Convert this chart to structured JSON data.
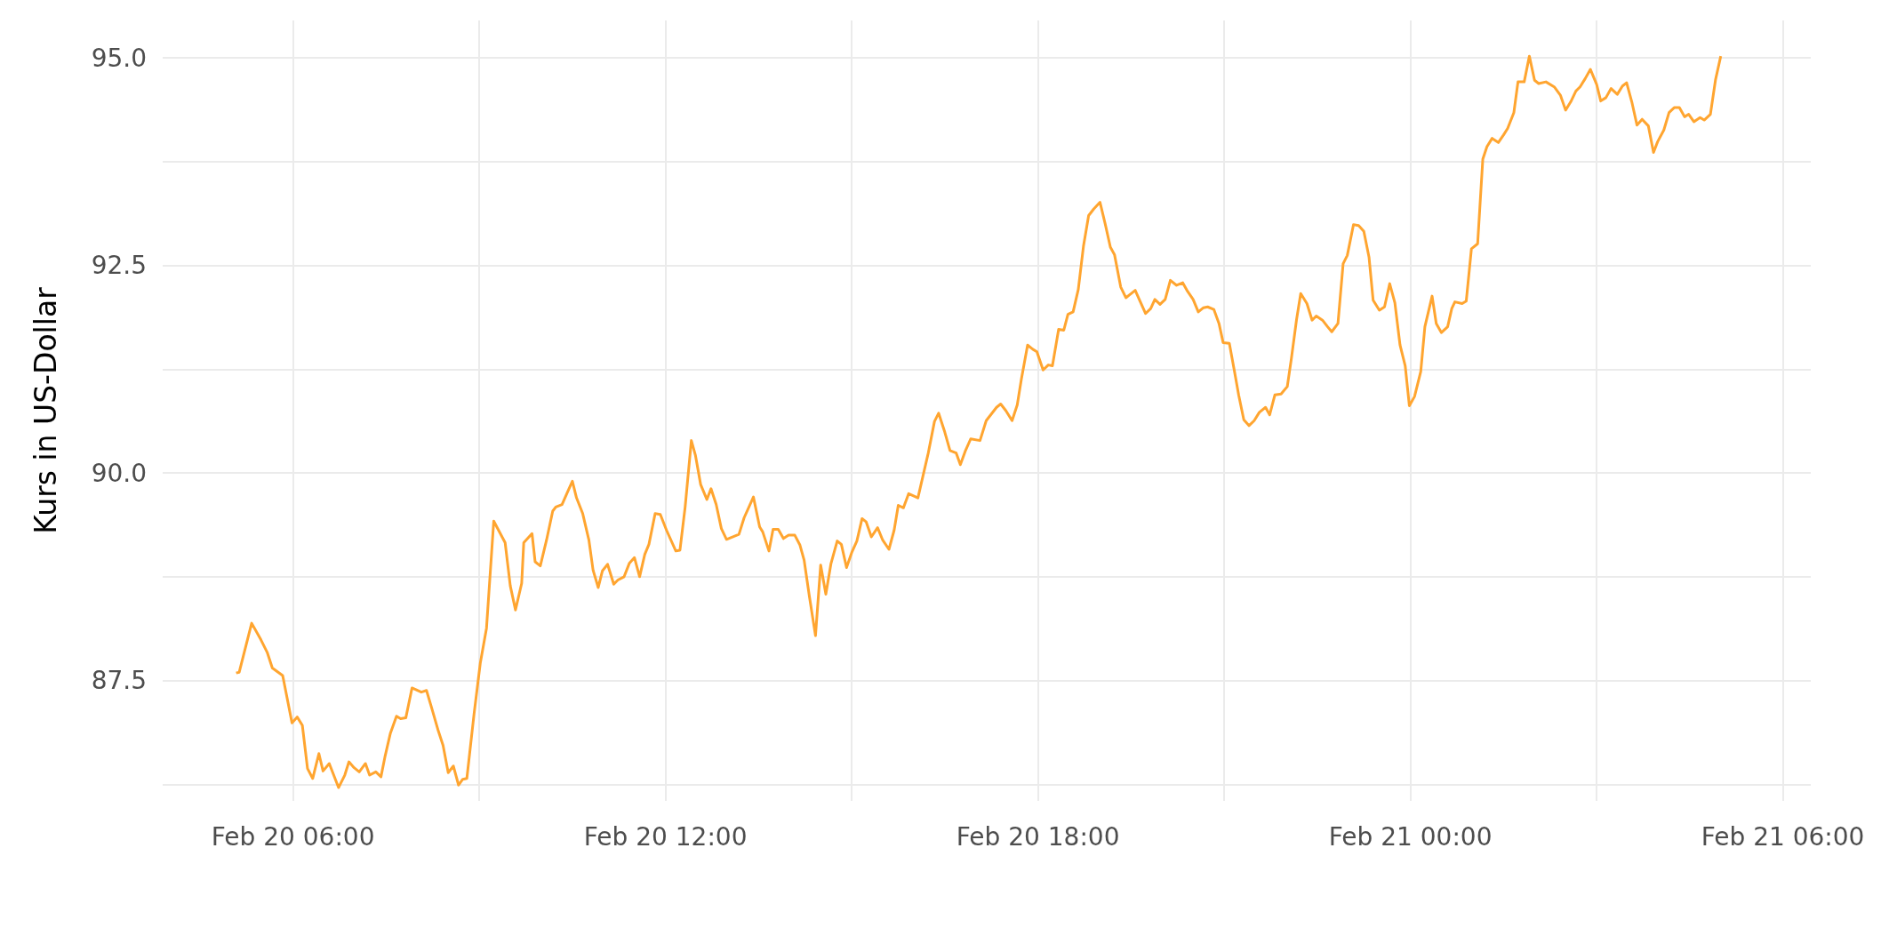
{
  "chart_data": {
    "type": "line",
    "ylabel": "Kurs in US-Dollar",
    "grid": true,
    "xlim": [
      "--02-20T03:54",
      "--02-21T06:27"
    ],
    "ylim": [
      86.05,
      95.45
    ],
    "xticks": [
      {
        "value": "--02-20T06:00",
        "label": "Feb 20 06:00"
      },
      {
        "value": "--02-20T09:00",
        "label": null
      },
      {
        "value": "--02-20T12:00",
        "label": "Feb 20 12:00"
      },
      {
        "value": "--02-20T15:00",
        "label": null
      },
      {
        "value": "--02-20T18:00",
        "label": "Feb 20 18:00"
      },
      {
        "value": "--02-20T21:00",
        "label": null
      },
      {
        "value": "--02-21T00:00",
        "label": "Feb 21 00:00"
      },
      {
        "value": "--02-21T03:00",
        "label": null
      },
      {
        "value": "--02-21T06:00",
        "label": "Feb 21 06:00"
      }
    ],
    "yticks": [
      {
        "value": 86.25,
        "label": null
      },
      87.5,
      {
        "value": 88.75,
        "label": null
      },
      {
        "value": 90,
        "label": "90.0"
      },
      {
        "value": 91.25,
        "label": null
      },
      92.5,
      {
        "value": 93.75,
        "label": null
      },
      {
        "value": 95,
        "label": "95.0"
      }
    ],
    "x": [
      "--02-20T05:05",
      "--02-20T05:08",
      "--02-20T05:20",
      "--02-20T05:29",
      "--02-20T05:35",
      "--02-20T05:40",
      "--02-20T05:50",
      "--02-20T05:59",
      "--02-20T06:04",
      "--02-20T06:09",
      "--02-20T06:14",
      "--02-20T06:19",
      "--02-20T06:25",
      "--02-20T06:29",
      "--02-20T06:35",
      "--02-20T06:44",
      "--02-20T06:50",
      "--02-20T06:54",
      "--02-20T06:59",
      "--02-20T07:04",
      "--02-20T07:10",
      "--02-20T07:14",
      "--02-20T07:20",
      "--02-20T07:25",
      "--02-20T07:29",
      "--02-20T07:34",
      "--02-20T07:40",
      "--02-20T07:44",
      "--02-20T07:49",
      "--02-20T07:55",
      "--02-20T08:04",
      "--02-20T08:09",
      "--02-20T08:14",
      "--02-20T08:20",
      "--02-20T08:25",
      "--02-20T08:30",
      "--02-20T08:35",
      "--02-20T08:40",
      "--02-20T08:44",
      "--02-20T08:48",
      "--02-20T08:55",
      "--02-20T09:01",
      "--02-20T09:07",
      "--02-20T09:14",
      "--02-20T09:25",
      "--02-20T09:30",
      "--02-20T09:35",
      "--02-20T09:41",
      "--02-20T09:43",
      "--02-20T09:51",
      "--02-20T09:54",
      "--02-20T09:59",
      "--02-20T10:05",
      "--02-20T10:11",
      "--02-20T10:14",
      "--02-20T10:20",
      "--02-20T10:25",
      "--02-20T10:30",
      "--02-20T10:34",
      "--02-20T10:40",
      "--02-20T10:46",
      "--02-20T10:50",
      "--02-20T10:55",
      "--02-20T10:59",
      "--02-20T11:04",
      "--02-20T11:10",
      "--02-20T11:14",
      "--02-20T11:20",
      "--02-20T11:25",
      "--02-20T11:30",
      "--02-20T11:35",
      "--02-20T11:40",
      "--02-20T11:44",
      "--02-20T11:50",
      "--02-20T11:55",
      "--02-20T12:01",
      "--02-20T12:10",
      "--02-20T12:14",
      "--02-20T12:19",
      "--02-20T12:25",
      "--02-20T12:29",
      "--02-20T12:34",
      "--02-20T12:40",
      "--02-20T12:44",
      "--02-20T12:49",
      "--02-20T12:54",
      "--02-20T12:59",
      "--02-20T13:11",
      "--02-20T13:16",
      "--02-20T13:25",
      "--02-20T13:31",
      "--02-20T13:34",
      "--02-20T13:40",
      "--02-20T13:44",
      "--02-20T13:49",
      "--02-20T13:54",
      "--02-20T13:59",
      "--02-20T14:05",
      "--02-20T14:10",
      "--02-20T14:14",
      "--02-20T14:19",
      "--02-20T14:25",
      "--02-20T14:30",
      "--02-20T14:35",
      "--02-20T14:40",
      "--02-20T14:46",
      "--02-20T14:50",
      "--02-20T14:55",
      "--02-20T15:00",
      "--02-20T15:05",
      "--02-20T15:10",
      "--02-20T15:14",
      "--02-20T15:19",
      "--02-20T15:25",
      "--02-20T15:30",
      "--02-20T15:36",
      "--02-20T15:41",
      "--02-20T15:45",
      "--02-20T15:50",
      "--02-20T15:55",
      "--02-20T16:04",
      "--02-20T16:09",
      "--02-20T16:14",
      "--02-20T16:20",
      "--02-20T16:24",
      "--02-20T16:30",
      "--02-20T16:35",
      "--02-20T16:41",
      "--02-20T16:45",
      "--02-20T16:50",
      "--02-20T16:55",
      "--02-20T17:04",
      "--02-20T17:10",
      "--02-20T17:15",
      "--02-20T17:20",
      "--02-20T17:24",
      "--02-20T17:29",
      "--02-20T17:35",
      "--02-20T17:40",
      "--02-20T17:44",
      "--02-20T17:50",
      "--02-20T17:55",
      "--02-20T17:59",
      "--02-20T18:05",
      "--02-20T18:10",
      "--02-20T18:14",
      "--02-20T18:20",
      "--02-20T18:25",
      "--02-20T18:29",
      "--02-20T18:34",
      "--02-20T18:39",
      "--02-20T18:44",
      "--02-20T18:49",
      "--02-20T18:54",
      "--02-20T19:00",
      "--02-20T19:05",
      "--02-20T19:10",
      "--02-20T19:14",
      "--02-20T19:20",
      "--02-20T19:25",
      "--02-20T19:30",
      "--02-20T19:34",
      "--02-20T19:39",
      "--02-20T19:44",
      "--02-20T19:49",
      "--02-20T19:53",
      "--02-20T19:58",
      "--02-20T20:03",
      "--02-20T20:08",
      "--02-20T20:14",
      "--02-20T20:20",
      "--02-20T20:24",
      "--02-20T20:30",
      "--02-20T20:35",
      "--02-20T20:40",
      "--02-20T20:44",
      "--02-20T20:50",
      "--02-20T20:55",
      "--02-20T20:59",
      "--02-20T21:05",
      "--02-20T21:10",
      "--02-20T21:14",
      "--02-20T21:19",
      "--02-20T21:24",
      "--02-20T21:29",
      "--02-20T21:34",
      "--02-20T21:40",
      "--02-20T21:44",
      "--02-20T21:49",
      "--02-20T21:55",
      "--02-20T22:01",
      "--02-20T22:05",
      "--02-20T22:10",
      "--02-20T22:14",
      "--02-20T22:20",
      "--02-20T22:25",
      "--02-20T22:29",
      "--02-20T22:35",
      "--02-20T22:40",
      "--02-20T22:44",
      "--02-20T22:50",
      "--02-20T22:55",
      "--02-20T22:59",
      "--02-20T23:05",
      "--02-20T23:10",
      "--02-20T23:15",
      "--02-20T23:20",
      "--02-20T23:24",
      "--02-20T23:30",
      "--02-20T23:35",
      "--02-20T23:40",
      "--02-20T23:45",
      "--02-20T23:50",
      "--02-20T23:55",
      "--02-20T23:59",
      "--02-21T00:04",
      "--02-21T00:10",
      "--02-21T00:14",
      "--02-21T00:21",
      "--02-21T00:25",
      "--02-21T00:30",
      "--02-21T00:36",
      "--02-21T00:40",
      "--02-21T00:43",
      "--02-21T00:50",
      "--02-21T00:54",
      "--02-21T00:59",
      "--02-21T01:05",
      "--02-21T01:10",
      "--02-21T01:14",
      "--02-21T01:19",
      "--02-21T01:25",
      "--02-21T01:30",
      "--02-21T01:34",
      "--02-21T01:40",
      "--02-21T01:44",
      "--02-21T01:50",
      "--02-21T01:55",
      "--02-21T02:00",
      "--02-21T02:04",
      "--02-21T02:11",
      "--02-21T02:19",
      "--02-21T02:25",
      "--02-21T02:30",
      "--02-21T02:35",
      "--02-21T02:40",
      "--02-21T02:44",
      "--02-21T02:49",
      "--02-21T02:54",
      "--02-21T03:00",
      "--02-21T03:04",
      "--02-21T03:09",
      "--02-21T03:14",
      "--02-21T03:20",
      "--02-21T03:25",
      "--02-21T03:29",
      "--02-21T03:34",
      "--02-21T03:39",
      "--02-21T03:44",
      "--02-21T03:50",
      "--02-21T03:55",
      "--02-21T03:59",
      "--02-21T04:05",
      "--02-21T04:10",
      "--02-21T04:15",
      "--02-21T04:20",
      "--02-21T04:25",
      "--02-21T04:29",
      "--02-21T04:34",
      "--02-21T04:40",
      "--02-21T04:44",
      "--02-21T04:50",
      "--02-21T04:55",
      "--02-21T05:00"
    ],
    "series": [
      {
        "color": "#ffa530",
        "values": [
          87.59,
          87.6,
          88.19,
          87.99,
          87.84,
          87.65,
          87.56,
          86.99,
          87.06,
          86.96,
          86.44,
          86.32,
          86.62,
          86.41,
          86.5,
          86.21,
          86.36,
          86.52,
          86.45,
          86.4,
          86.5,
          86.36,
          86.4,
          86.34,
          86.59,
          86.86,
          87.07,
          87.04,
          87.05,
          87.41,
          87.36,
          87.38,
          87.17,
          86.91,
          86.72,
          86.39,
          86.47,
          86.24,
          86.31,
          86.32,
          87.1,
          87.71,
          88.13,
          89.42,
          89.16,
          88.64,
          88.35,
          88.67,
          89.16,
          89.27,
          88.93,
          88.88,
          89.19,
          89.54,
          89.59,
          89.62,
          89.76,
          89.9,
          89.7,
          89.51,
          89.19,
          88.83,
          88.62,
          88.82,
          88.9,
          88.66,
          88.71,
          88.75,
          88.91,
          88.98,
          88.75,
          89.02,
          89.14,
          89.51,
          89.5,
          89.31,
          89.06,
          89.07,
          89.59,
          90.39,
          90.21,
          89.86,
          89.68,
          89.81,
          89.62,
          89.33,
          89.2,
          89.26,
          89.46,
          89.71,
          89.35,
          89.29,
          89.06,
          89.32,
          89.32,
          89.21,
          89.25,
          89.25,
          89.13,
          88.95,
          88.52,
          88.04,
          88.89,
          88.54,
          88.91,
          89.18,
          89.14,
          88.86,
          89.04,
          89.18,
          89.45,
          89.41,
          89.23,
          89.34,
          89.19,
          89.08,
          89.31,
          89.61,
          89.58,
          89.75,
          89.7,
          89.97,
          90.24,
          90.62,
          90.72,
          90.49,
          90.27,
          90.24,
          90.1,
          90.27,
          90.41,
          90.39,
          90.63,
          90.71,
          90.79,
          90.83,
          90.75,
          90.63,
          90.82,
          91.13,
          91.54,
          91.49,
          91.46,
          91.24,
          91.3,
          91.29,
          91.73,
          91.72,
          91.91,
          91.94,
          92.21,
          92.73,
          93.1,
          93.18,
          93.26,
          93.0,
          92.72,
          92.63,
          92.24,
          92.11,
          92.16,
          92.2,
          92.06,
          91.92,
          91.98,
          92.09,
          92.03,
          92.09,
          92.32,
          92.26,
          92.29,
          92.2,
          92.09,
          91.94,
          91.99,
          92.0,
          91.97,
          91.8,
          91.57,
          91.56,
          91.22,
          90.94,
          90.64,
          90.57,
          90.63,
          90.73,
          90.79,
          90.7,
          90.94,
          90.95,
          91.04,
          91.38,
          91.85,
          92.16,
          92.04,
          91.84,
          91.89,
          91.84,
          91.76,
          91.7,
          91.8,
          92.52,
          92.62,
          92.99,
          92.98,
          92.91,
          92.6,
          92.08,
          91.96,
          92.0,
          92.28,
          92.05,
          91.54,
          91.29,
          90.81,
          90.92,
          91.22,
          91.76,
          92.13,
          91.8,
          91.69,
          91.76,
          91.98,
          92.06,
          92.04,
          92.07,
          92.7,
          92.76,
          93.78,
          93.93,
          94.03,
          93.98,
          94.07,
          94.15,
          94.34,
          94.71,
          94.71,
          95.02,
          94.73,
          94.69,
          94.71,
          94.65,
          94.55,
          94.37,
          94.47,
          94.6,
          94.65,
          94.75,
          94.86,
          94.68,
          94.48,
          94.52,
          94.63,
          94.56,
          94.66,
          94.7,
          94.47,
          94.19,
          94.26,
          94.18,
          93.86,
          93.99,
          94.13,
          94.34,
          94.4,
          94.4,
          94.29,
          94.32,
          94.23,
          94.28,
          94.25,
          94.32,
          94.74,
          95.02
        ]
      }
    ]
  }
}
